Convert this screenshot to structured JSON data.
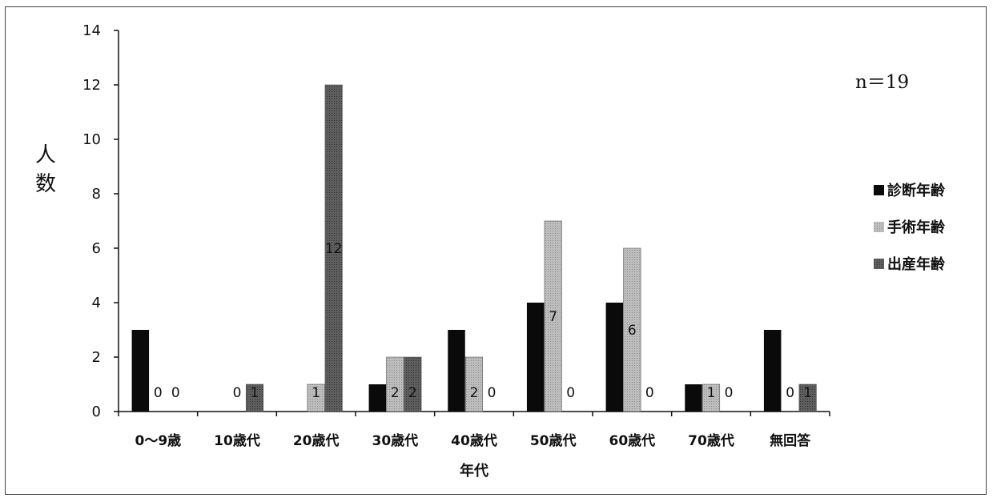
{
  "chart_data": {
    "type": "bar",
    "categories": [
      "0〜9歳",
      "10歳代",
      "20歳代",
      "30歳代",
      "40歳代",
      "50歳代",
      "60歳代",
      "70歳代",
      "無回答"
    ],
    "series": [
      {
        "name": "診断年齢",
        "values": [
          3,
          0,
          0,
          1,
          3,
          4,
          4,
          1,
          3
        ],
        "color": "#0a0a0a",
        "labels": [
          "",
          "",
          "",
          "",
          "",
          "",
          "",
          "",
          ""
        ]
      },
      {
        "name": "手術年齢",
        "values": [
          0,
          0,
          1,
          2,
          2,
          7,
          6,
          1,
          0
        ],
        "color": "#b4b4b4",
        "labels": [
          "0",
          "0",
          "1",
          "2",
          "2",
          "7",
          "6",
          "1",
          "0"
        ]
      },
      {
        "name": "出産年齢",
        "values": [
          0,
          1,
          12,
          2,
          0,
          0,
          0,
          0,
          1
        ],
        "color": "#5a5a5a",
        "labels": [
          "0",
          "1",
          "12",
          "2",
          "0",
          "0",
          "0",
          "0",
          "1"
        ]
      }
    ],
    "xlabel": "年代",
    "ylabel": "人数",
    "ylim": [
      0,
      14
    ],
    "yticks": [
      0,
      2,
      4,
      6,
      8,
      10,
      12,
      14
    ],
    "grid": false,
    "legend": "right",
    "annotation": "n＝19"
  }
}
